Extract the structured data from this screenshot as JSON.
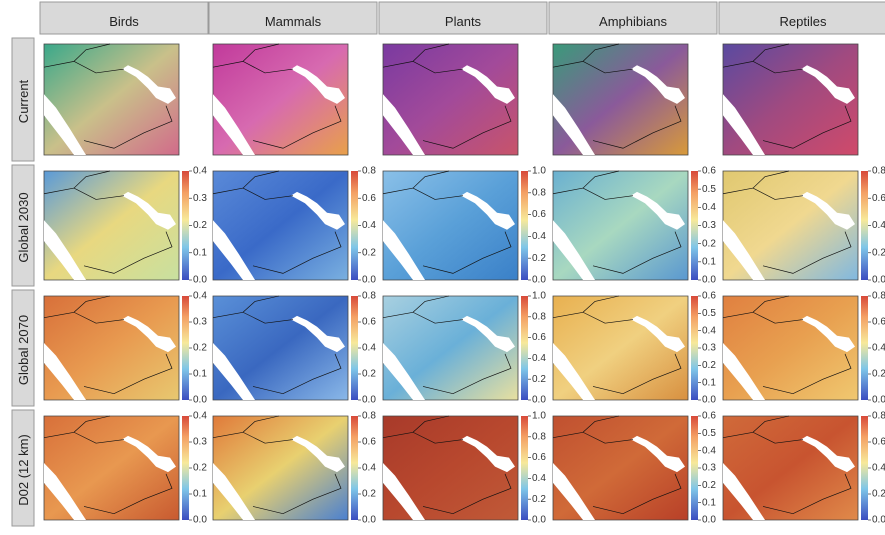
{
  "columns": [
    "Birds",
    "Mammals",
    "Plants",
    "Amphibians",
    "Reptiles"
  ],
  "rows": [
    "Current",
    "Global 2030",
    "Global 2070",
    "D02 (12 km)"
  ],
  "colorbars": [
    {
      "ticks": [
        "0.0",
        "0.1",
        "0.2",
        "0.3",
        "0.4"
      ]
    },
    {
      "ticks": [
        "0.0",
        "0.2",
        "0.4",
        "0.6",
        "0.8"
      ]
    },
    {
      "ticks": [
        "0.0",
        "0.2",
        "0.4",
        "0.6",
        "0.8",
        "1.0"
      ]
    },
    {
      "ticks": [
        "0.0",
        "0.1",
        "0.2",
        "0.3",
        "0.4",
        "0.5",
        "0.6"
      ]
    },
    {
      "ticks": [
        "0.0",
        "0.2",
        "0.4",
        "0.6",
        "0.8"
      ]
    }
  ]
}
